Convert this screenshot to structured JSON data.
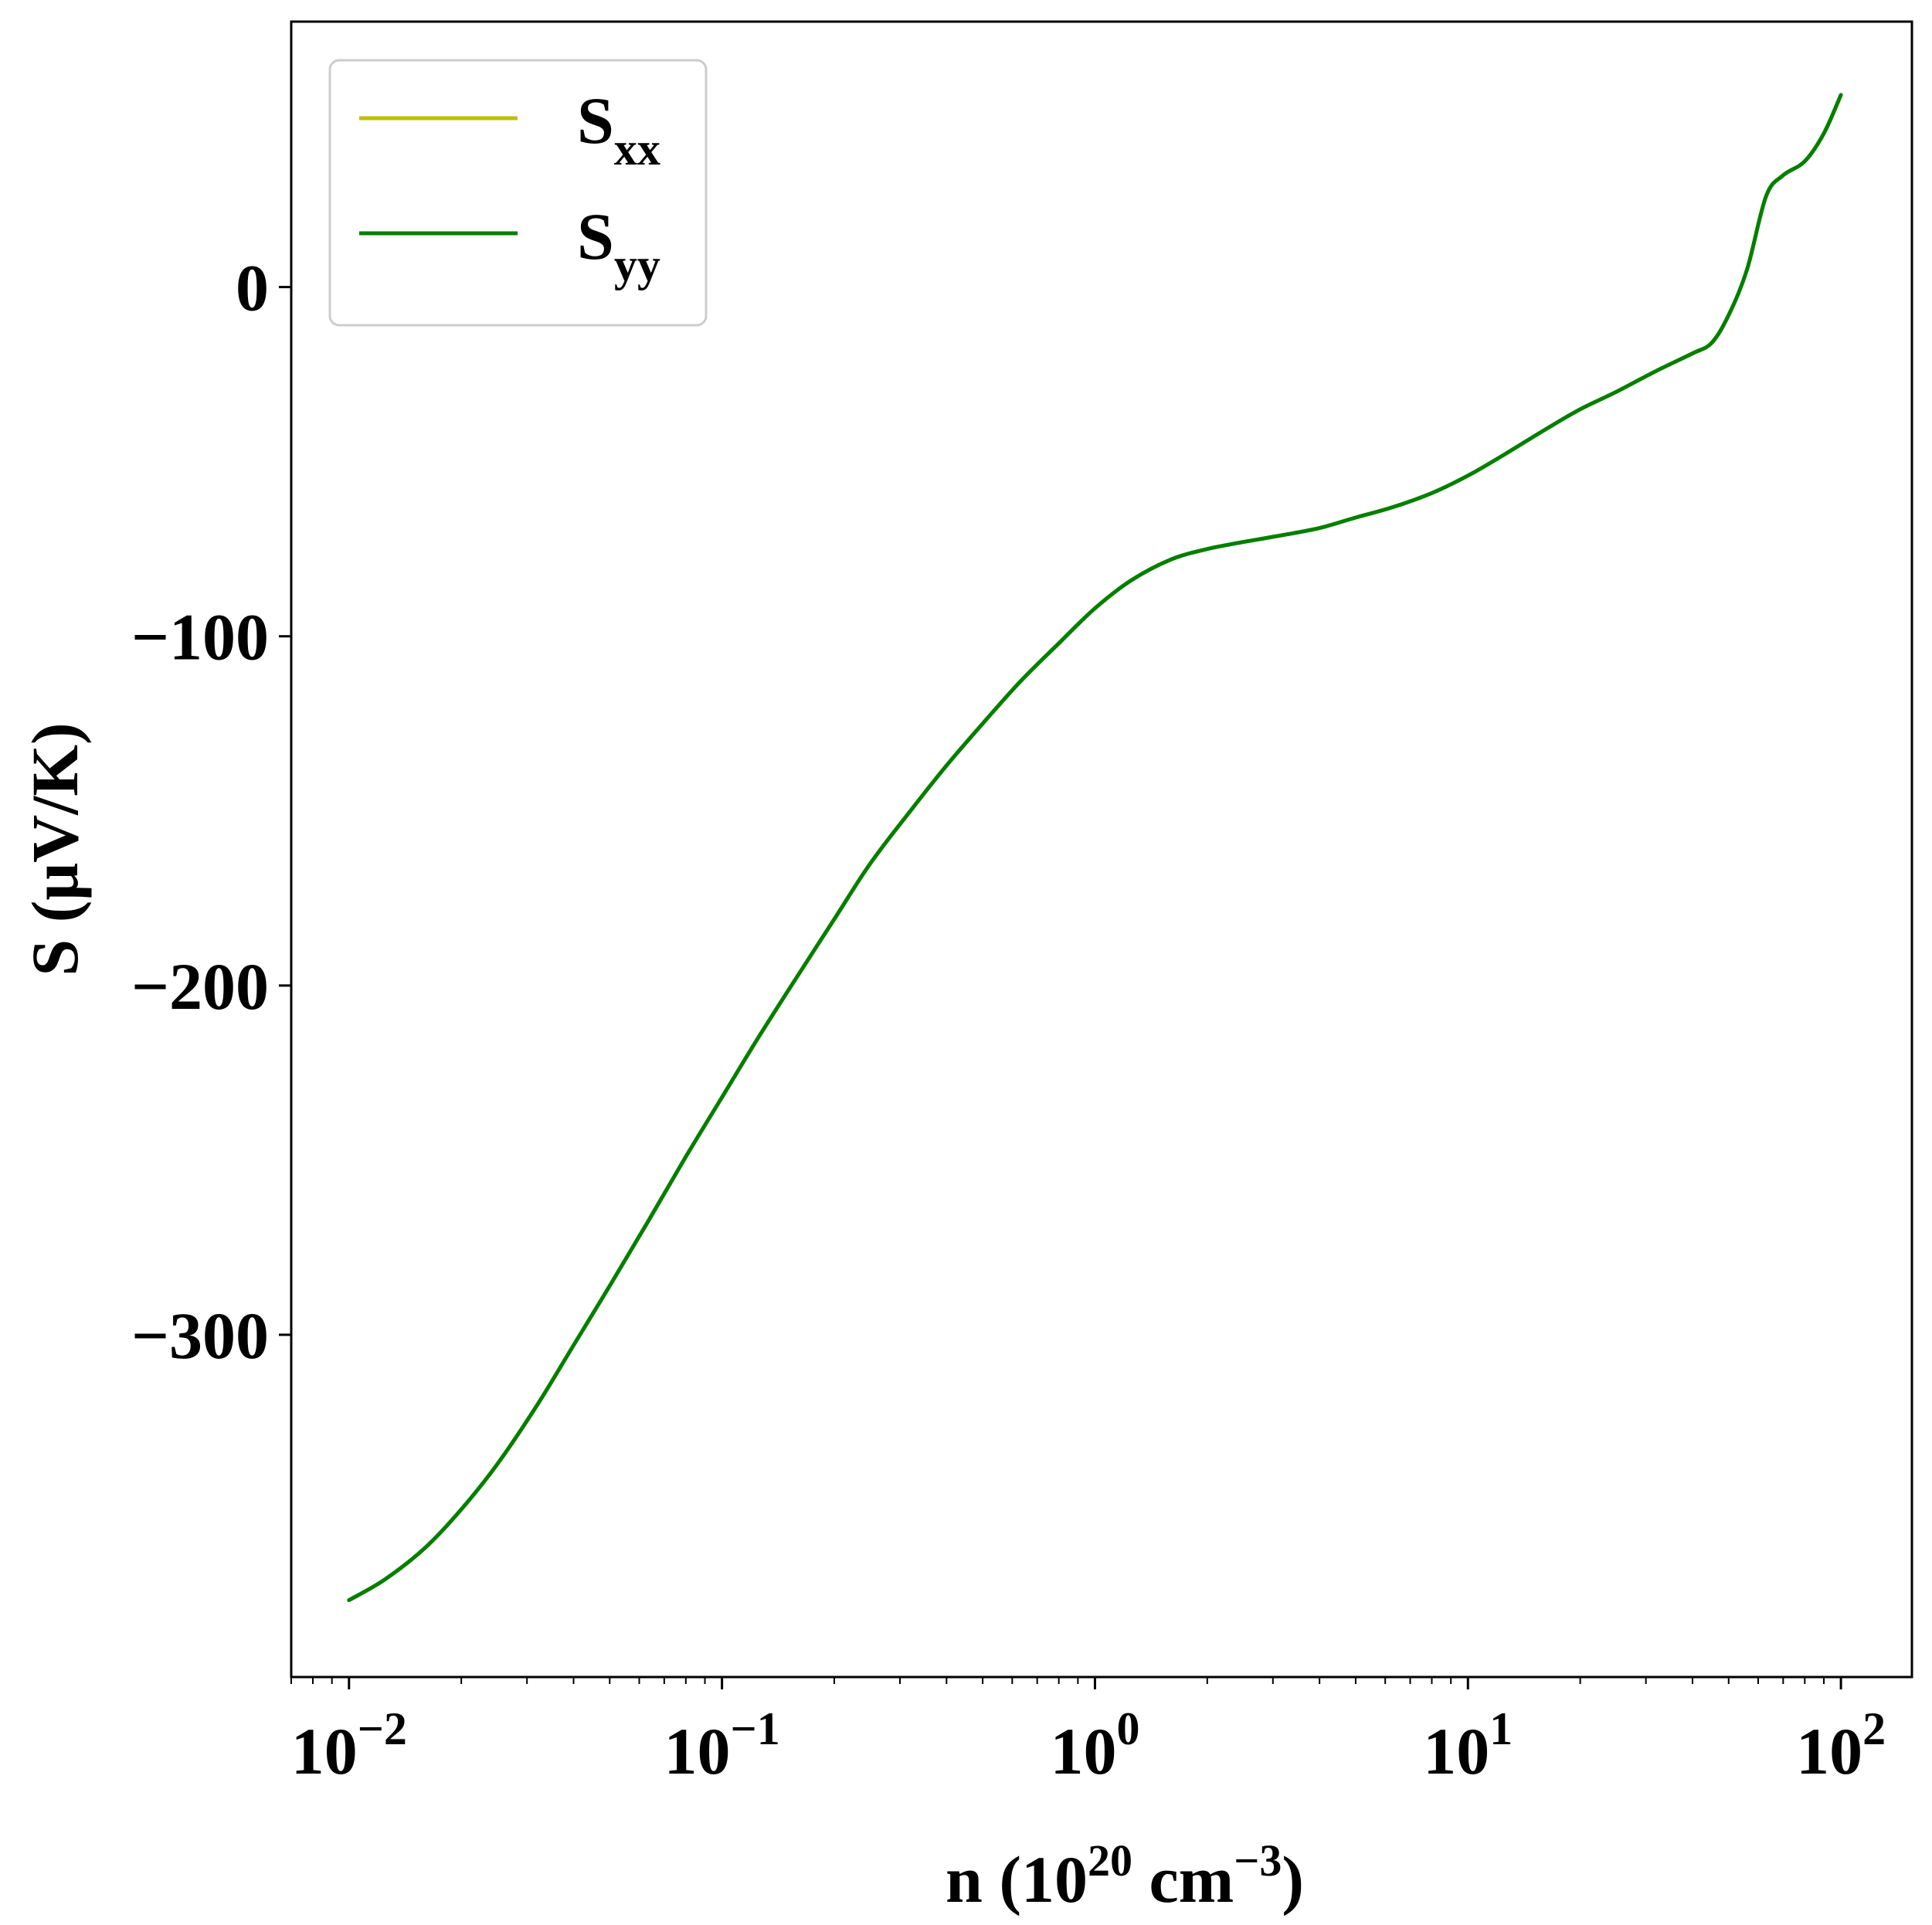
{
  "chart_data": {
    "type": "line",
    "xscale": "log",
    "xlabel": {
      "prefix": "n (10",
      "sup1": "20",
      "middle": " cm",
      "sup2": "−3",
      "suffix": ")"
    },
    "ylabel": "S (μV/K)",
    "xlim": [
      0.007,
      155
    ],
    "ylim": [
      -398,
      76
    ],
    "x_ticks": [
      {
        "value": 0.01,
        "base": "10",
        "exp": "−2"
      },
      {
        "value": 0.1,
        "base": "10",
        "exp": "−1"
      },
      {
        "value": 1,
        "base": "10",
        "exp": "0"
      },
      {
        "value": 10,
        "base": "10",
        "exp": "1"
      },
      {
        "value": 100,
        "base": "10",
        "exp": "2"
      }
    ],
    "y_ticks": [
      {
        "value": 0,
        "label": "0"
      },
      {
        "value": -100,
        "label": "−100"
      },
      {
        "value": -200,
        "label": "−200"
      },
      {
        "value": -300,
        "label": "−300"
      }
    ],
    "grid": false,
    "legend_position": "top-left",
    "series": [
      {
        "name": {
          "base": "S",
          "sub": "xx"
        },
        "color": "#bfbf00",
        "x": [
          0.01,
          0.0125,
          0.016,
          0.02,
          0.025,
          0.032,
          0.04,
          0.05,
          0.063,
          0.08,
          0.1,
          0.125,
          0.16,
          0.2,
          0.25,
          0.32,
          0.4,
          0.5,
          0.63,
          0.8,
          1.0,
          1.25,
          1.6,
          2.0,
          2.5,
          3.2,
          4.0,
          5.0,
          6.3,
          8.0,
          10,
          12.5,
          16,
          20,
          25,
          32,
          40,
          45,
          50,
          56,
          63,
          70,
          80,
          90,
          100
        ],
        "y": [
          -376,
          -370,
          -361,
          -350,
          -337,
          -320,
          -303,
          -286,
          -268,
          -249,
          -232,
          -215,
          -197,
          -181,
          -165,
          -150,
          -137,
          -125,
          -113,
          -102,
          -92,
          -84,
          -78,
          -75,
          -73,
          -71,
          -69,
          -66,
          -63,
          -59,
          -54,
          -48,
          -41,
          -35,
          -30,
          -24,
          -19,
          -16,
          -8,
          5,
          26,
          32,
          36,
          44,
          55
        ]
      },
      {
        "name": {
          "base": "S",
          "sub": "yy"
        },
        "color": "#007f00",
        "x": [
          0.01,
          0.0125,
          0.016,
          0.02,
          0.025,
          0.032,
          0.04,
          0.05,
          0.063,
          0.08,
          0.1,
          0.125,
          0.16,
          0.2,
          0.25,
          0.32,
          0.4,
          0.5,
          0.63,
          0.8,
          1.0,
          1.25,
          1.6,
          2.0,
          2.5,
          3.2,
          4.0,
          5.0,
          6.3,
          8.0,
          10,
          12.5,
          16,
          20,
          25,
          32,
          40,
          45,
          50,
          56,
          63,
          70,
          80,
          90,
          100
        ],
        "y": [
          -376,
          -370,
          -361,
          -350,
          -337,
          -320,
          -303,
          -286,
          -268,
          -249,
          -232,
          -215,
          -197,
          -181,
          -165,
          -150,
          -137,
          -125,
          -113,
          -102,
          -92,
          -84,
          -78,
          -75,
          -73,
          -71,
          -69,
          -66,
          -63,
          -59,
          -54,
          -48,
          -41,
          -35,
          -30,
          -24,
          -19,
          -16,
          -8,
          5,
          26,
          32,
          36,
          44,
          55
        ]
      }
    ]
  }
}
